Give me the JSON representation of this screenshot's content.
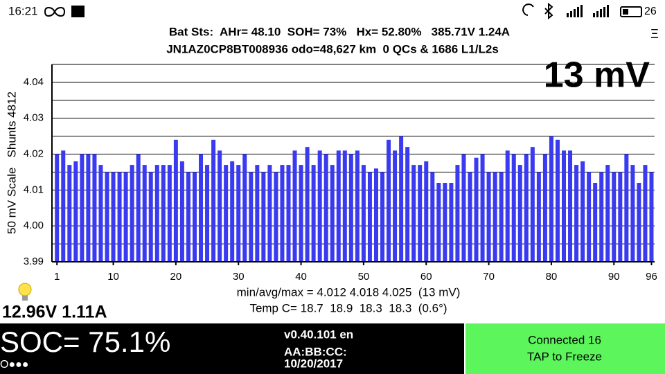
{
  "status_bar": {
    "time": "16:21",
    "battery": "26"
  },
  "header": {
    "line1": "Bat Sts:  AHr= 48.10  SOH= 73%   Hx= 52.80%   385.71V 1.24A",
    "line2": "JN1AZ0CP8BT008936 odo=48,627 km  0 QCs & 1686 L1/L2s",
    "menu": "Ξ"
  },
  "chart_data": {
    "type": "bar",
    "big_label": "13 mV",
    "ylabel": "50 mV Scale   Shunts 4812",
    "color": "#3a3af0",
    "x": [
      1,
      2,
      3,
      4,
      5,
      6,
      7,
      8,
      9,
      10,
      11,
      12,
      13,
      14,
      15,
      16,
      17,
      18,
      19,
      20,
      21,
      22,
      23,
      24,
      25,
      26,
      27,
      28,
      29,
      30,
      31,
      32,
      33,
      34,
      35,
      36,
      37,
      38,
      39,
      40,
      41,
      42,
      43,
      44,
      45,
      46,
      47,
      48,
      49,
      50,
      51,
      52,
      53,
      54,
      55,
      56,
      57,
      58,
      59,
      60,
      61,
      62,
      63,
      64,
      65,
      66,
      67,
      68,
      69,
      70,
      71,
      72,
      73,
      74,
      75,
      76,
      77,
      78,
      79,
      80,
      81,
      82,
      83,
      84,
      85,
      86,
      87,
      88,
      89,
      90,
      91,
      92,
      93,
      94,
      95,
      96
    ],
    "values": [
      4.02,
      4.021,
      4.017,
      4.018,
      4.02,
      4.02,
      4.02,
      4.017,
      4.015,
      4.015,
      4.015,
      4.015,
      4.017,
      4.02,
      4.017,
      4.015,
      4.017,
      4.017,
      4.017,
      4.024,
      4.018,
      4.015,
      4.015,
      4.02,
      4.017,
      4.024,
      4.021,
      4.017,
      4.018,
      4.017,
      4.02,
      4.015,
      4.017,
      4.015,
      4.017,
      4.015,
      4.017,
      4.017,
      4.021,
      4.017,
      4.022,
      4.017,
      4.021,
      4.02,
      4.017,
      4.021,
      4.021,
      4.02,
      4.021,
      4.017,
      4.015,
      4.016,
      4.015,
      4.024,
      4.021,
      4.025,
      4.022,
      4.017,
      4.017,
      4.018,
      4.015,
      4.012,
      4.012,
      4.012,
      4.017,
      4.02,
      4.015,
      4.019,
      4.02,
      4.015,
      4.015,
      4.015,
      4.021,
      4.02,
      4.017,
      4.02,
      4.022,
      4.015,
      4.02,
      4.025,
      4.024,
      4.021,
      4.021,
      4.017,
      4.018,
      4.015,
      4.012,
      4.015,
      4.017,
      4.015,
      4.015,
      4.02,
      4.017,
      4.012,
      4.017,
      4.015
    ],
    "xlim": [
      0.2,
      96.5
    ],
    "ylim": [
      3.99,
      4.045
    ],
    "xticks": [
      1,
      10,
      20,
      30,
      40,
      50,
      60,
      70,
      80,
      90,
      96
    ],
    "yticks": [
      3.99,
      {
        "value": 4.0,
        "label": "4.00"
      },
      4.01,
      4.02,
      4.03,
      4.04
    ],
    "grid": true,
    "stats": [
      "min/avg/max = 4.012 4.018 4.025  (13 mV)",
      "Temp C= 18.7  18.9  18.3  18.3  (0.6°)"
    ]
  },
  "readout": "12.96V 1.11A",
  "footer": {
    "soc": "SOC= 75.1%",
    "dots": "O●●●",
    "version": "v0.40.101 en",
    "mac": "AA:BB:CC:",
    "date": "10/20/2017",
    "connection": "Connected 16",
    "action": "TAP to Freeze"
  }
}
